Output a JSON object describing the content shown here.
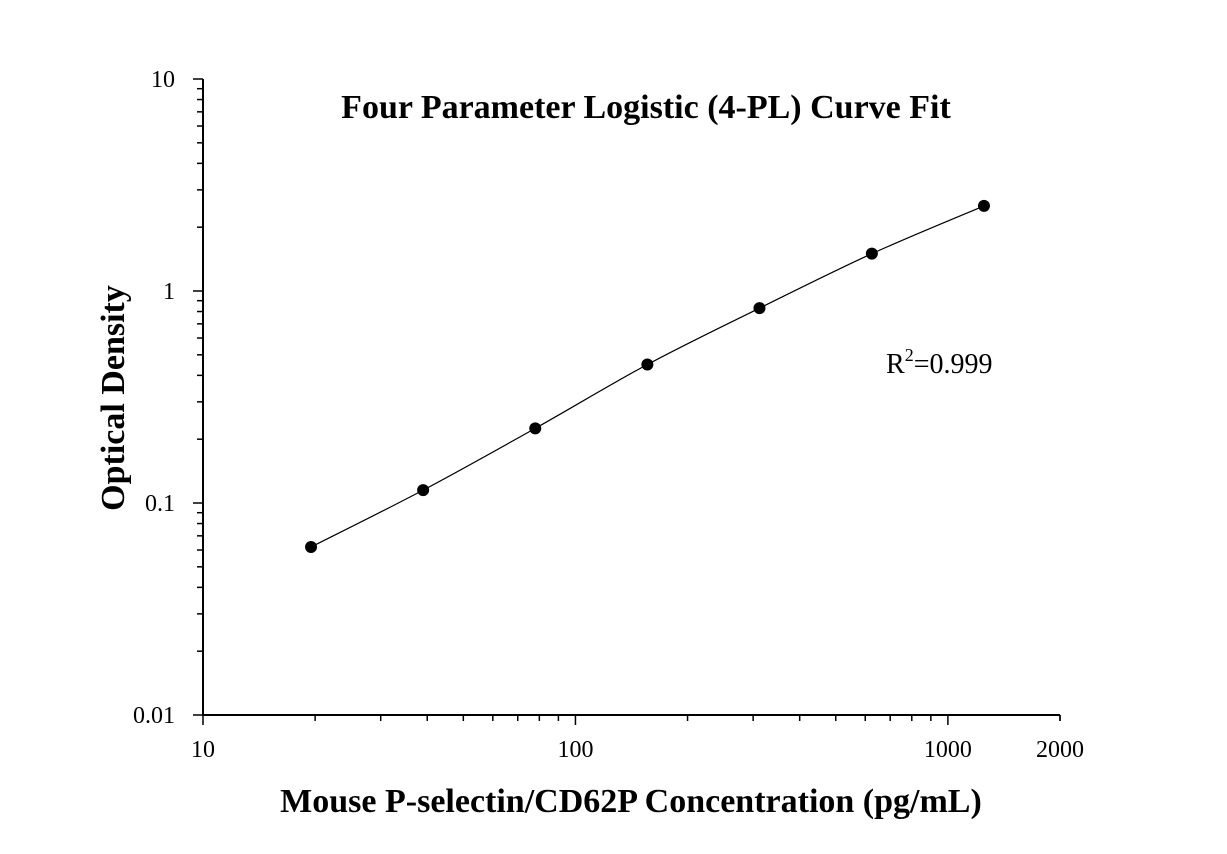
{
  "chart_data": {
    "type": "scatter",
    "title": "Four Parameter Logistic (4-PL) Curve Fit",
    "xlabel": "Mouse P-selectin/CD62P Concentration (pg/mL)",
    "ylabel": "Optical Density",
    "xscale": "log",
    "yscale": "log",
    "xlim": [
      10,
      2000
    ],
    "ylim": [
      0.01,
      10
    ],
    "x_ticks": [
      "10",
      "100",
      "1000",
      "2000"
    ],
    "y_ticks": [
      "0.01",
      "0.1",
      "1",
      "10"
    ],
    "grid": false,
    "points": [
      {
        "x": 19.5,
        "y": 0.062
      },
      {
        "x": 39,
        "y": 0.115
      },
      {
        "x": 78,
        "y": 0.225
      },
      {
        "x": 156,
        "y": 0.45
      },
      {
        "x": 312,
        "y": 0.83
      },
      {
        "x": 625,
        "y": 1.5
      },
      {
        "x": 1250,
        "y": 2.52
      }
    ],
    "fit": "4-PL",
    "annotation": {
      "base": "R",
      "sup": "2",
      "rest": "=0.999"
    },
    "colors": {
      "marker": "#000000",
      "line": "#000000",
      "axis": "#000000"
    }
  }
}
